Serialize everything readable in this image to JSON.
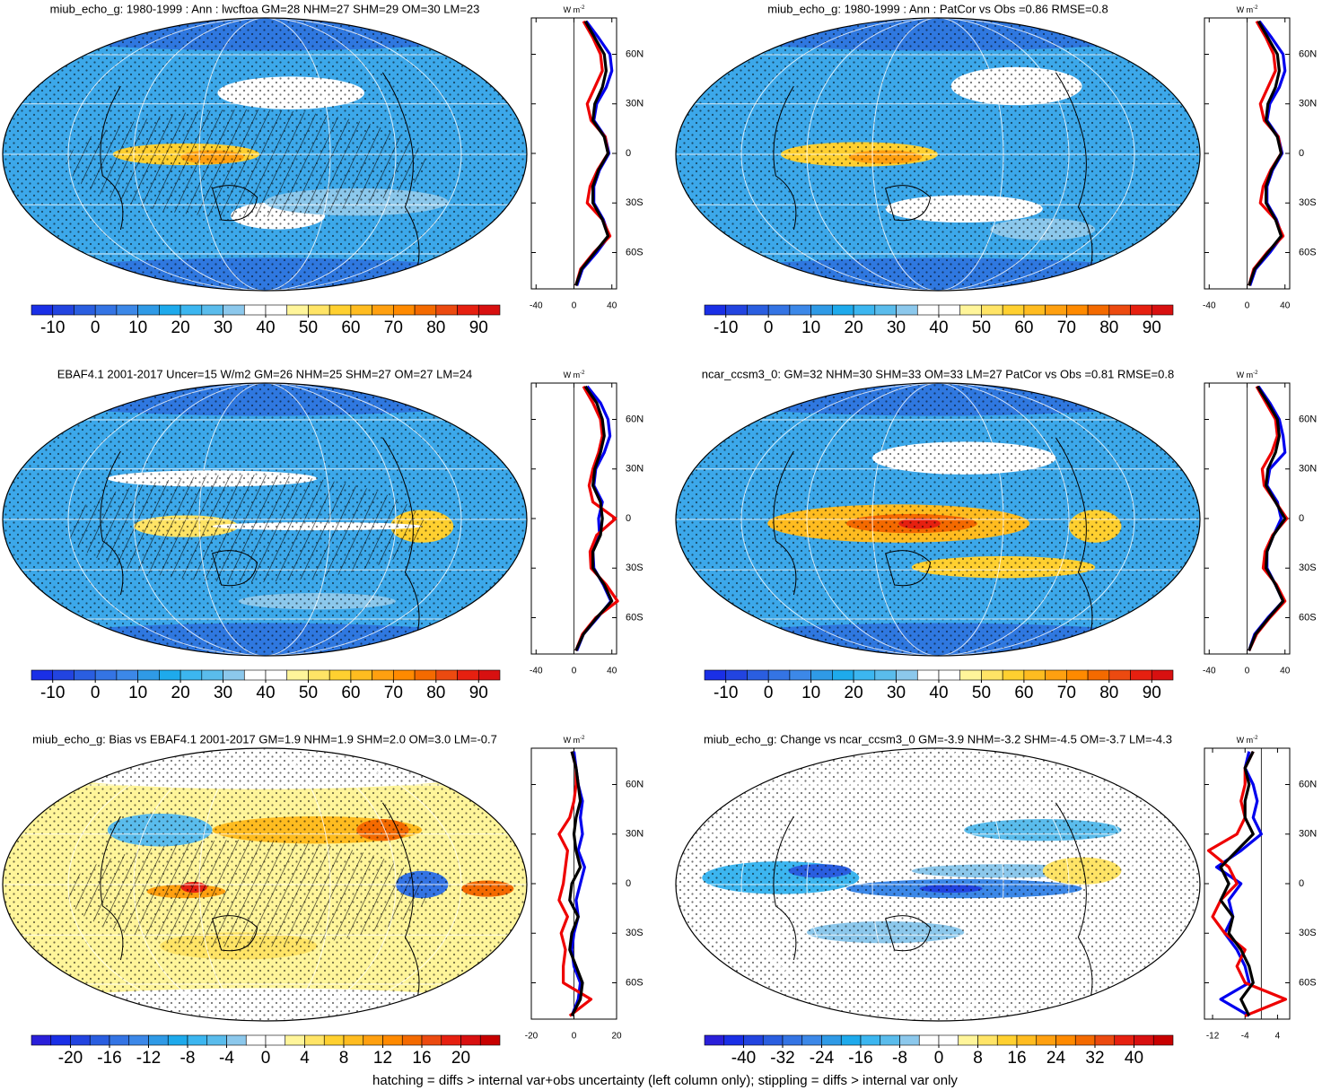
{
  "chart_data": [
    {
      "type": "line",
      "title": "miub_echo_g: 1980-1999 : Ann : lwcftoa GM=28 NHM=27 SHM=29 OM=30 LM=23",
      "units": "W m",
      "units_sup": "-2",
      "y": [
        -80,
        -70,
        -60,
        -50,
        -40,
        -30,
        -20,
        -10,
        0,
        10,
        20,
        30,
        40,
        50,
        60,
        70,
        80
      ],
      "series": [
        {
          "color": "#0000ee",
          "values": [
            3,
            9,
            24,
            37,
            31,
            21,
            21,
            27,
            37,
            33,
            21,
            24,
            34,
            40,
            38,
            26,
            13
          ]
        },
        {
          "color": "#ee0000",
          "values": [
            2,
            7,
            21,
            38,
            30,
            14,
            17,
            25,
            36,
            33,
            18,
            14,
            22,
            30,
            28,
            20,
            10
          ]
        },
        {
          "color": "#000000",
          "values": [
            2,
            8,
            22,
            36,
            30,
            20,
            20,
            26,
            36,
            32,
            20,
            22,
            30,
            34,
            32,
            22,
            12
          ]
        }
      ],
      "xlim": [
        -45,
        45
      ],
      "xticks": [
        -40,
        0,
        40
      ],
      "ylim": [
        -82,
        82
      ],
      "yticks": [
        {
          "value": 60,
          "label": "60N"
        },
        {
          "value": 30,
          "label": "30N"
        },
        0,
        {
          "value": -30,
          "label": "30S"
        },
        {
          "value": -60,
          "label": "60S"
        }
      ],
      "cbar_lim": [
        -15,
        95
      ],
      "cbar_ticks": [
        -10,
        0,
        10,
        20,
        30,
        40,
        50,
        60,
        70,
        80,
        90
      ],
      "cbar_colors": [
        "#1a2fe6",
        "#2244e0",
        "#2a5ee0",
        "#3474e4",
        "#3c88e8",
        "#2f9ae6",
        "#1eaaec",
        "#3cb6f0",
        "#5abcec",
        "#8cc8ec",
        "#ffffff",
        "#ffffff",
        "#fff59a",
        "#ffe466",
        "#ffd030",
        "#ffbc20",
        "#ffa010",
        "#ff8a00",
        "#f46a00",
        "#ec4a10",
        "#e62010",
        "#d81010"
      ]
    },
    {
      "type": "line",
      "title": "miub_echo_g: 1980-1999 : Ann : PatCor vs Obs =0.86 RMSE=0.8",
      "units": "W m",
      "units_sup": "-2",
      "y": [
        -80,
        -70,
        -60,
        -50,
        -40,
        -30,
        -20,
        -10,
        0,
        10,
        20,
        30,
        40,
        50,
        60,
        70,
        80
      ],
      "series": [
        {
          "color": "#0000ee",
          "values": [
            3,
            9,
            24,
            37,
            31,
            21,
            21,
            27,
            37,
            33,
            21,
            24,
            34,
            40,
            38,
            26,
            13
          ]
        },
        {
          "color": "#ee0000",
          "values": [
            2,
            7,
            21,
            38,
            30,
            14,
            17,
            25,
            36,
            33,
            18,
            14,
            22,
            30,
            28,
            20,
            10
          ]
        },
        {
          "color": "#000000",
          "values": [
            2,
            8,
            22,
            36,
            30,
            20,
            20,
            26,
            36,
            32,
            20,
            22,
            30,
            34,
            32,
            22,
            12
          ]
        }
      ],
      "xlim": [
        -45,
        45
      ],
      "xticks": [
        -40,
        0,
        40
      ],
      "ylim": [
        -82,
        82
      ],
      "yticks": [
        {
          "value": 60,
          "label": "60N"
        },
        {
          "value": 30,
          "label": "30N"
        },
        0,
        {
          "value": -30,
          "label": "30S"
        },
        {
          "value": -60,
          "label": "60S"
        }
      ],
      "cbar_lim": [
        -15,
        95
      ],
      "cbar_ticks": [
        -10,
        0,
        10,
        20,
        30,
        40,
        50,
        60,
        70,
        80,
        90
      ],
      "cbar_colors": [
        "#1a2fe6",
        "#2244e0",
        "#2a5ee0",
        "#3474e4",
        "#3c88e8",
        "#2f9ae6",
        "#1eaaec",
        "#3cb6f0",
        "#5abcec",
        "#8cc8ec",
        "#ffffff",
        "#ffffff",
        "#fff59a",
        "#ffe466",
        "#ffd030",
        "#ffbc20",
        "#ffa010",
        "#ff8a00",
        "#f46a00",
        "#ec4a10",
        "#e62010",
        "#d81010"
      ]
    },
    {
      "type": "line",
      "title": "EBAF4.1 2001-2017 Uncer=15 W/m2 GM=26 NHM=25 SHM=27 OM=27 LM=24",
      "units": "W m",
      "units_sup": "-2",
      "y": [
        -80,
        -70,
        -60,
        -50,
        -40,
        -30,
        -20,
        -10,
        0,
        10,
        20,
        30,
        40,
        50,
        60,
        70,
        80
      ],
      "series": [
        {
          "color": "#0000ee",
          "values": [
            3,
            10,
            25,
            39,
            31,
            21,
            20,
            27,
            26,
            30,
            21,
            23,
            32,
            38,
            36,
            28,
            14
          ]
        },
        {
          "color": "#ee0000",
          "values": [
            2,
            9,
            23,
            46,
            34,
            18,
            17,
            24,
            44,
            20,
            16,
            20,
            26,
            30,
            28,
            20,
            10
          ]
        },
        {
          "color": "#000000",
          "values": [
            2,
            10,
            24,
            40,
            32,
            20,
            20,
            28,
            30,
            28,
            20,
            22,
            28,
            32,
            30,
            24,
            12
          ]
        }
      ],
      "xlim": [
        -45,
        45
      ],
      "xticks": [
        -40,
        0,
        40
      ],
      "ylim": [
        -82,
        82
      ],
      "yticks": [
        {
          "value": 60,
          "label": "60N"
        },
        {
          "value": 30,
          "label": "30N"
        },
        0,
        {
          "value": -30,
          "label": "30S"
        },
        {
          "value": -60,
          "label": "60S"
        }
      ],
      "cbar_lim": [
        -15,
        95
      ],
      "cbar_ticks": [
        -10,
        0,
        10,
        20,
        30,
        40,
        50,
        60,
        70,
        80,
        90
      ],
      "cbar_colors": [
        "#1a2fe6",
        "#2244e0",
        "#2a5ee0",
        "#3474e4",
        "#3c88e8",
        "#2f9ae6",
        "#1eaaec",
        "#3cb6f0",
        "#5abcec",
        "#8cc8ec",
        "#ffffff",
        "#ffffff",
        "#fff59a",
        "#ffe466",
        "#ffd030",
        "#ffbc20",
        "#ffa010",
        "#ff8a00",
        "#f46a00",
        "#ec4a10",
        "#e62010",
        "#d81010"
      ]
    },
    {
      "type": "line",
      "title": "ncar_ccsm3_0: GM=32 NHM=30 SHM=33 OM=33 LM=27 PatCor vs Obs =0.81 RMSE=0.8",
      "units": "W m",
      "units_sup": "-2",
      "y": [
        -80,
        -70,
        -60,
        -50,
        -40,
        -30,
        -20,
        -10,
        0,
        10,
        20,
        30,
        40,
        50,
        60,
        70,
        80
      ],
      "series": [
        {
          "color": "#0000ee",
          "values": [
            2,
            8,
            22,
            38,
            30,
            21,
            21,
            28,
            36,
            32,
            21,
            24,
            40,
            38,
            34,
            24,
            12
          ]
        },
        {
          "color": "#ee0000",
          "values": [
            2,
            10,
            24,
            40,
            31,
            17,
            19,
            27,
            42,
            30,
            18,
            16,
            26,
            32,
            30,
            20,
            10
          ]
        },
        {
          "color": "#000000",
          "values": [
            2,
            9,
            23,
            38,
            30,
            20,
            21,
            28,
            40,
            30,
            20,
            22,
            30,
            34,
            32,
            22,
            11
          ]
        }
      ],
      "xlim": [
        -45,
        45
      ],
      "xticks": [
        -40,
        0,
        40
      ],
      "ylim": [
        -82,
        82
      ],
      "yticks": [
        {
          "value": 60,
          "label": "60N"
        },
        {
          "value": 30,
          "label": "30N"
        },
        0,
        {
          "value": -30,
          "label": "30S"
        },
        {
          "value": -60,
          "label": "60S"
        }
      ],
      "cbar_lim": [
        -15,
        95
      ],
      "cbar_ticks": [
        -10,
        0,
        10,
        20,
        30,
        40,
        50,
        60,
        70,
        80,
        90
      ],
      "cbar_colors": [
        "#1a2fe6",
        "#2244e0",
        "#2a5ee0",
        "#3474e4",
        "#3c88e8",
        "#2f9ae6",
        "#1eaaec",
        "#3cb6f0",
        "#5abcec",
        "#8cc8ec",
        "#ffffff",
        "#ffffff",
        "#fff59a",
        "#ffe466",
        "#ffd030",
        "#ffbc20",
        "#ffa010",
        "#ff8a00",
        "#f46a00",
        "#ec4a10",
        "#e62010",
        "#d81010"
      ]
    },
    {
      "type": "line",
      "title": "miub_echo_g: Bias vs EBAF4.1 2001-2017 GM=1.9 NHM=1.9 SHM=2.0 OM=3.0 LM=-0.7",
      "units": "W m",
      "units_sup": "-2",
      "y": [
        -80,
        -70,
        -60,
        -50,
        -40,
        -30,
        -20,
        -10,
        0,
        10,
        20,
        30,
        40,
        50,
        60,
        70,
        80
      ],
      "series": [
        {
          "color": "#0000ee",
          "values": [
            -1,
            2,
            3,
            0,
            -1,
            0,
            2,
            1,
            3,
            5,
            2,
            4,
            3,
            4,
            2,
            1,
            0
          ]
        },
        {
          "color": "#ee0000",
          "values": [
            -2,
            8,
            -5,
            -5,
            -4,
            -6,
            -3,
            -7,
            -5,
            -4,
            -3,
            -7,
            -2,
            0,
            1,
            1,
            -1
          ]
        },
        {
          "color": "#000000",
          "values": [
            -1,
            3,
            4,
            1,
            -2,
            -1,
            2,
            -2,
            -1,
            3,
            1,
            0,
            1,
            3,
            2,
            1,
            -1
          ]
        }
      ],
      "xlim": [
        -20,
        20
      ],
      "xticks": [
        -20,
        0,
        20
      ],
      "ylim": [
        -82,
        82
      ],
      "yticks": [
        {
          "value": 60,
          "label": "60N"
        },
        {
          "value": 30,
          "label": "30N"
        },
        0,
        {
          "value": -30,
          "label": "30S"
        },
        {
          "value": -60,
          "label": "60S"
        }
      ],
      "cbar_lim": [
        -24,
        24
      ],
      "cbar_ticks": [
        -20,
        -16,
        -12,
        -8,
        -4,
        0,
        4,
        8,
        12,
        16,
        20
      ],
      "cbar_colors": [
        "#2a1fd9",
        "#1a2fe6",
        "#2244e0",
        "#2a5ee0",
        "#3474e4",
        "#3c88e8",
        "#2f9ae6",
        "#1eaaec",
        "#3cb6f0",
        "#5abcec",
        "#8cc8ec",
        "#ffffff",
        "#ffffff",
        "#fff59a",
        "#ffe466",
        "#ffd030",
        "#ffbc20",
        "#ffa010",
        "#ff8a00",
        "#f46a00",
        "#ec4a10",
        "#e62010",
        "#d81010",
        "#c80000"
      ]
    },
    {
      "type": "line",
      "title": "miub_echo_g: Change vs ncar_ccsm3_0 GM=-3.9 NHM=-3.2 SHM=-4.5 OM=-3.7 LM=-4.3",
      "units": "W m",
      "units_sup": "-2",
      "y": [
        -80,
        -70,
        -60,
        -50,
        -40,
        -30,
        -20,
        -10,
        0,
        10,
        20,
        30,
        40,
        50,
        60,
        70,
        80
      ],
      "series": [
        {
          "color": "#0000ee",
          "values": [
            -3,
            -10,
            -3,
            -4,
            -6,
            -9,
            -7,
            -8,
            -5,
            -11,
            -5,
            0,
            -2,
            -1,
            -2,
            -4,
            -3
          ]
        },
        {
          "color": "#ee0000",
          "values": [
            -4,
            6,
            -4,
            -6,
            -4,
            -9,
            -12,
            -10,
            -6,
            -8,
            -13,
            -6,
            -4,
            -5,
            -4,
            -4,
            -2
          ]
        },
        {
          "color": "#000000",
          "values": [
            -3,
            -5,
            -2,
            -3,
            -5,
            -8,
            -7,
            -10,
            -8,
            -10,
            -6,
            -2,
            -4,
            -4,
            -3,
            -4,
            -2
          ]
        }
      ],
      "xlim": [
        -14,
        7
      ],
      "xticks": [
        -12,
        -4,
        4
      ],
      "ylim": [
        -82,
        82
      ],
      "yticks": [
        {
          "value": 60,
          "label": "60N"
        },
        {
          "value": 30,
          "label": "30N"
        },
        0,
        {
          "value": -30,
          "label": "30S"
        },
        {
          "value": -60,
          "label": "60S"
        }
      ],
      "cbar_lim": [
        -48,
        48
      ],
      "cbar_ticks": [
        -40,
        -32,
        -24,
        -16,
        -8,
        0,
        8,
        16,
        24,
        32,
        40
      ],
      "cbar_colors": [
        "#2a1fd9",
        "#1a2fe6",
        "#2244e0",
        "#2a5ee0",
        "#3474e4",
        "#3c88e8",
        "#2f9ae6",
        "#1eaaec",
        "#3cb6f0",
        "#5abcec",
        "#8cc8ec",
        "#ffffff",
        "#ffffff",
        "#fff59a",
        "#ffe466",
        "#ffd030",
        "#ffbc20",
        "#ffa010",
        "#ff8a00",
        "#f46a00",
        "#ec4a10",
        "#e62010",
        "#d81010",
        "#c80000"
      ]
    }
  ],
  "caption": "hatching = diffs > internal var+obs uncertainty (left column only); stippling = diffs > internal var only"
}
